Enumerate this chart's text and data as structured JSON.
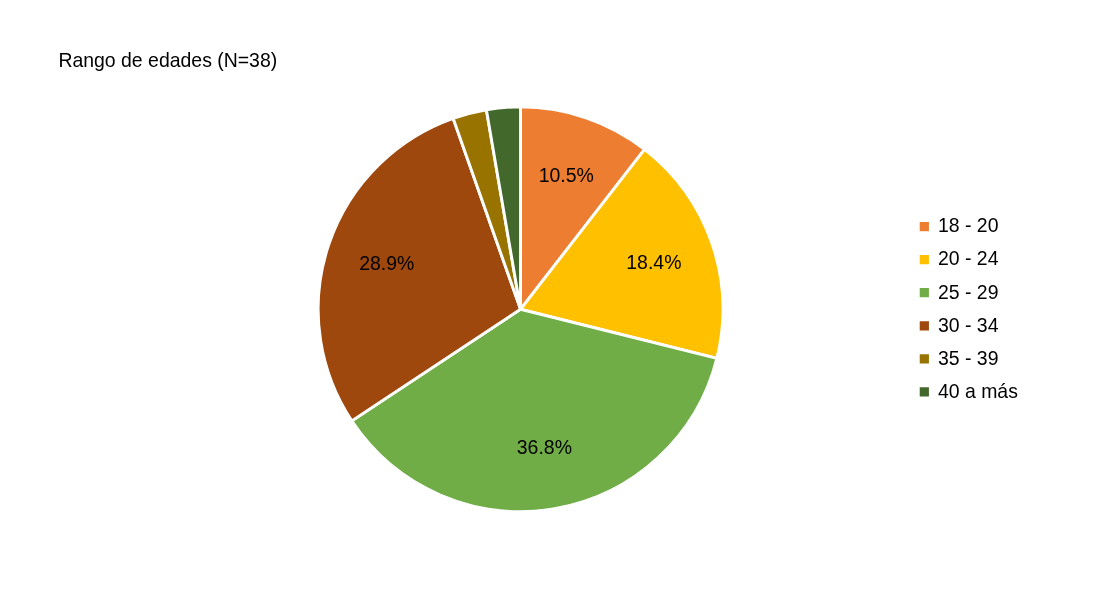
{
  "chart_data": {
    "type": "pie",
    "title": "Rango de edades (N=38)",
    "categories": [
      "18 - 20",
      "20 - 24",
      "25 - 29",
      "30 - 34",
      "35 - 39",
      "40 a más"
    ],
    "values": [
      10.5,
      18.4,
      36.8,
      28.9,
      2.7,
      2.7
    ],
    "value_labels": [
      "10.5%",
      "18.4%",
      "36.8%",
      "28.9%",
      null,
      null
    ],
    "colors": [
      "#ed7d31",
      "#ffc000",
      "#70ad47",
      "#9e480e",
      "#997300",
      "#43682b"
    ],
    "legend": "right"
  }
}
